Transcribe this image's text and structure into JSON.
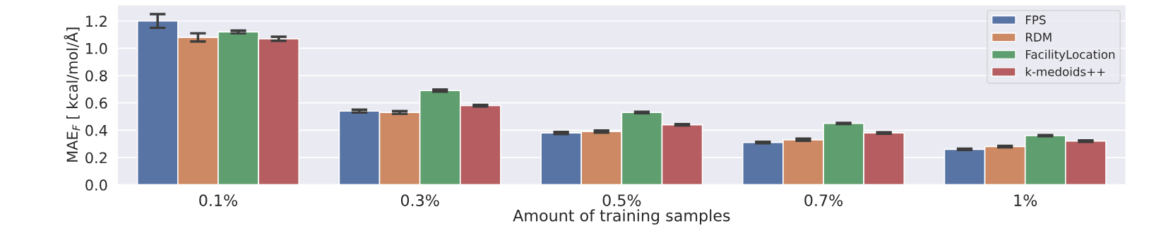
{
  "chart_data": {
    "type": "bar",
    "xlabel": "Amount of training samples",
    "ylabel": "MAE$_{F}$ [ kcal/mol/Å]",
    "categories": [
      "0.1%",
      "0.3%",
      "0.5%",
      "0.7%",
      "1%"
    ],
    "series": [
      {
        "name": "FPS",
        "color": "#5874a4",
        "values": [
          1.2,
          0.54,
          0.38,
          0.31,
          0.26
        ],
        "errors": [
          0.05,
          0.01,
          0.008,
          0.005,
          0.005
        ]
      },
      {
        "name": "RDM",
        "color": "#cc8963",
        "values": [
          1.08,
          0.53,
          0.39,
          0.33,
          0.28
        ],
        "errors": [
          0.03,
          0.01,
          0.008,
          0.008,
          0.005
        ]
      },
      {
        "name": "FacilityLocation",
        "color": "#5f9e6e",
        "values": [
          1.12,
          0.69,
          0.53,
          0.45,
          0.36
        ],
        "errors": [
          0.01,
          0.008,
          0.005,
          0.004,
          0.004
        ]
      },
      {
        "name": "k-medoids++",
        "color": "#b55d60",
        "values": [
          1.07,
          0.58,
          0.44,
          0.38,
          0.32
        ],
        "errors": [
          0.015,
          0.006,
          0.005,
          0.005,
          0.005
        ]
      }
    ],
    "ylim": [
      0,
      1.32
    ],
    "yticks": [
      {
        "value": 0,
        "label": "0.0"
      },
      0.2,
      0.4,
      0.6,
      0.8,
      {
        "value": 1,
        "label": "1.0"
      },
      1.2
    ],
    "grid": "y",
    "legend": "top right"
  }
}
